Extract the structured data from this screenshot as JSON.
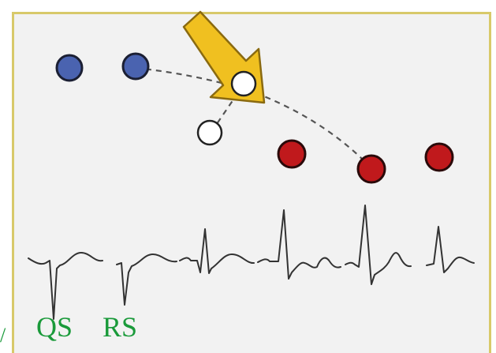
{
  "labels": {
    "qs": "QS",
    "rs": "RS"
  },
  "edge_mark": "/",
  "colors": {
    "panel_background": "#f2f2f2",
    "panel_border": "#d8c96a",
    "blue_dot": "#4a63b0",
    "red_dot": "#c0191c",
    "white_dot": "#ffffff",
    "arrow_fill": "#f0c020",
    "arrow_stroke": "#8a6a10",
    "dashed_path": "#555555",
    "waveform": "#333333",
    "label_text": "#1a9a3a"
  },
  "dots": [
    {
      "color": "blue"
    },
    {
      "color": "blue"
    },
    {
      "color": "white"
    },
    {
      "color": "white"
    },
    {
      "color": "red"
    },
    {
      "color": "red"
    },
    {
      "color": "red"
    }
  ],
  "waveform_count": 6,
  "icons": {
    "arrow": "arrow-down-right-icon"
  }
}
